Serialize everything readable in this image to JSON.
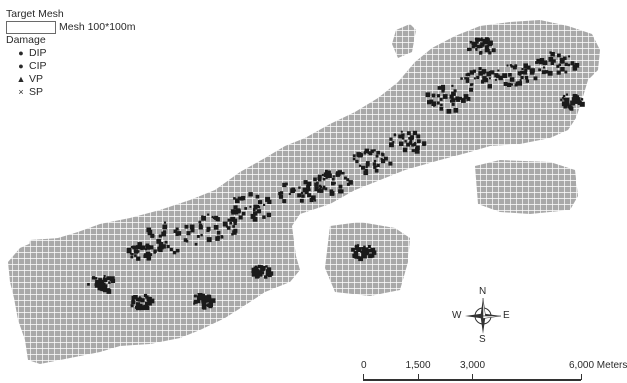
{
  "legend": {
    "title": "Target Mesh",
    "mesh_label": "Mesh 100*100m",
    "damage_title": "Damage",
    "damage_types": [
      {
        "symbol": "●",
        "label": "DIP"
      },
      {
        "symbol": "●",
        "label": "CIP"
      },
      {
        "symbol": "▲",
        "label": "VP"
      },
      {
        "symbol": "×",
        "label": "SP"
      }
    ]
  },
  "compass": {
    "n": "N",
    "s": "S",
    "e": "E",
    "w": "W"
  },
  "scale": {
    "labels": [
      "0",
      "1,500",
      "3,000",
      "6,000 Meters"
    ],
    "values": [
      0,
      1500,
      3000,
      6000
    ],
    "max": 6000
  },
  "colors": {
    "mesh_fill": "#a9a9a9",
    "mesh_line": "#ffffff",
    "damage": "#1a1a1a"
  }
}
